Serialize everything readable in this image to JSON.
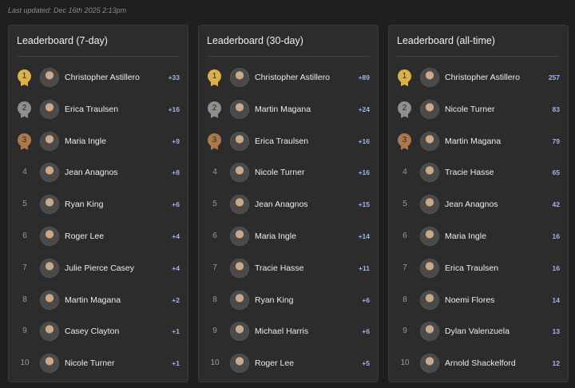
{
  "last_updated": "Last updated: Dec 16th 2025 2:13pm",
  "leaderboards": [
    {
      "title": "Leaderboard (7-day)",
      "rows": [
        {
          "rank": "1",
          "name": "Christopher Astillero",
          "score": "+33"
        },
        {
          "rank": "2",
          "name": "Erica Traulsen",
          "score": "+16"
        },
        {
          "rank": "3",
          "name": "Maria Ingle",
          "score": "+9"
        },
        {
          "rank": "4",
          "name": "Jean Anagnos",
          "score": "+8"
        },
        {
          "rank": "5",
          "name": "Ryan King",
          "score": "+6"
        },
        {
          "rank": "6",
          "name": "Roger Lee",
          "score": "+4"
        },
        {
          "rank": "7",
          "name": "Julie Pierce Casey",
          "score": "+4"
        },
        {
          "rank": "8",
          "name": "Martin Magana",
          "score": "+2"
        },
        {
          "rank": "9",
          "name": "Casey Clayton",
          "score": "+1"
        },
        {
          "rank": "10",
          "name": "Nicole Turner",
          "score": "+1"
        }
      ]
    },
    {
      "title": "Leaderboard (30-day)",
      "rows": [
        {
          "rank": "1",
          "name": "Christopher Astillero",
          "score": "+89"
        },
        {
          "rank": "2",
          "name": "Martin Magana",
          "score": "+24"
        },
        {
          "rank": "3",
          "name": "Erica Traulsen",
          "score": "+16"
        },
        {
          "rank": "4",
          "name": "Nicole Turner",
          "score": "+16"
        },
        {
          "rank": "5",
          "name": "Jean Anagnos",
          "score": "+15"
        },
        {
          "rank": "6",
          "name": "Maria Ingle",
          "score": "+14"
        },
        {
          "rank": "7",
          "name": "Tracie Hasse",
          "score": "+11"
        },
        {
          "rank": "8",
          "name": "Ryan King",
          "score": "+6"
        },
        {
          "rank": "9",
          "name": "Michael Harris",
          "score": "+6"
        },
        {
          "rank": "10",
          "name": "Roger Lee",
          "score": "+5"
        }
      ]
    },
    {
      "title": "Leaderboard (all-time)",
      "rows": [
        {
          "rank": "1",
          "name": "Christopher Astillero",
          "score": "257"
        },
        {
          "rank": "2",
          "name": "Nicole Turner",
          "score": "83"
        },
        {
          "rank": "3",
          "name": "Martin Magana",
          "score": "79"
        },
        {
          "rank": "4",
          "name": "Tracie Hasse",
          "score": "65"
        },
        {
          "rank": "5",
          "name": "Jean Anagnos",
          "score": "42"
        },
        {
          "rank": "6",
          "name": "Maria Ingle",
          "score": "16"
        },
        {
          "rank": "7",
          "name": "Erica Traulsen",
          "score": "16"
        },
        {
          "rank": "8",
          "name": "Noemi Flores",
          "score": "14"
        },
        {
          "rank": "9",
          "name": "Dylan Valenzuela",
          "score": "13"
        },
        {
          "rank": "10",
          "name": "Arnold Shackelford",
          "score": "12"
        }
      ]
    }
  ]
}
